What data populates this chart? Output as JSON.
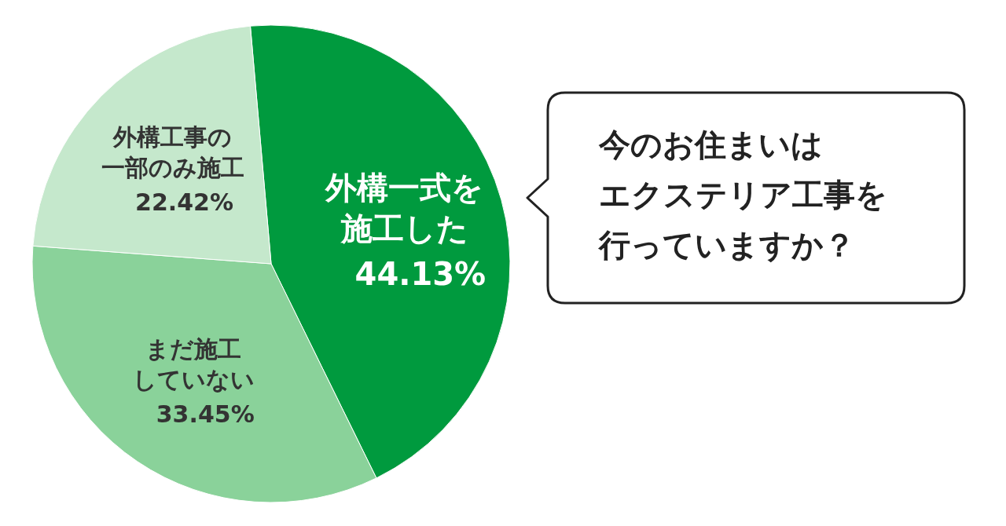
{
  "chart_data": {
    "type": "pie",
    "title": "今のお住まいはエクステリア工事を行っていますか？",
    "categories": [
      "外構一式を施工した",
      "まだ施工していない",
      "外構工事の一部のみ施工"
    ],
    "values": [
      44.13,
      33.45,
      22.42
    ],
    "colors": [
      "#009a3e",
      "#8ad29a",
      "#c5e8cc"
    ],
    "value_labels": [
      "44.13%",
      "33.45%",
      "22.42%"
    ]
  }
}
